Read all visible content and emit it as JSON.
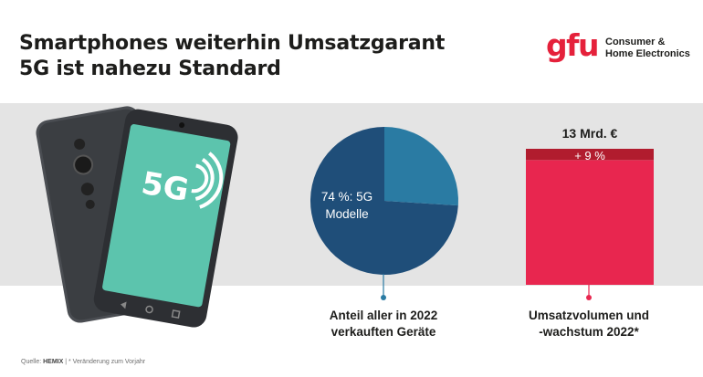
{
  "header": {
    "title_line1": "Smartphones weiterhin Umsatzgarant",
    "title_line2": "5G ist nahezu Standard"
  },
  "logo": {
    "wordmark": "gfu",
    "line1": "Consumer &",
    "line2": "Home Electronics",
    "color": "#e5213b"
  },
  "illustration": {
    "screen_text": "5G"
  },
  "chart_data": [
    {
      "type": "pie",
      "slices": [
        {
          "label": "74 %: 5G Modelle",
          "value": 74,
          "color": "#1f4e79"
        },
        {
          "label": "",
          "value": 26,
          "color": "#2a7ba3"
        }
      ],
      "inner_label_line1": "74 %: 5G",
      "inner_label_line2": "Modelle",
      "caption_line1": "Anteil aller in 2022",
      "caption_line2": "verkauften Geräte"
    },
    {
      "type": "bar",
      "categories": [
        "2022"
      ],
      "series": [
        {
          "name": "",
          "values": [
            13
          ],
          "color": "#e8264f"
        }
      ],
      "total_label": "13 Mrd. €",
      "growth_label": "+ 9 %",
      "growth_percent": 9,
      "growth_color": "#b11c2e",
      "caption_line1": "Umsatzvolumen und",
      "caption_line2": "-wachstum 2022*"
    }
  ],
  "footer": {
    "source_prefix": "Quelle: ",
    "source_name": "HEMIX",
    "note": " | * Veränderung zum Vorjahr"
  }
}
